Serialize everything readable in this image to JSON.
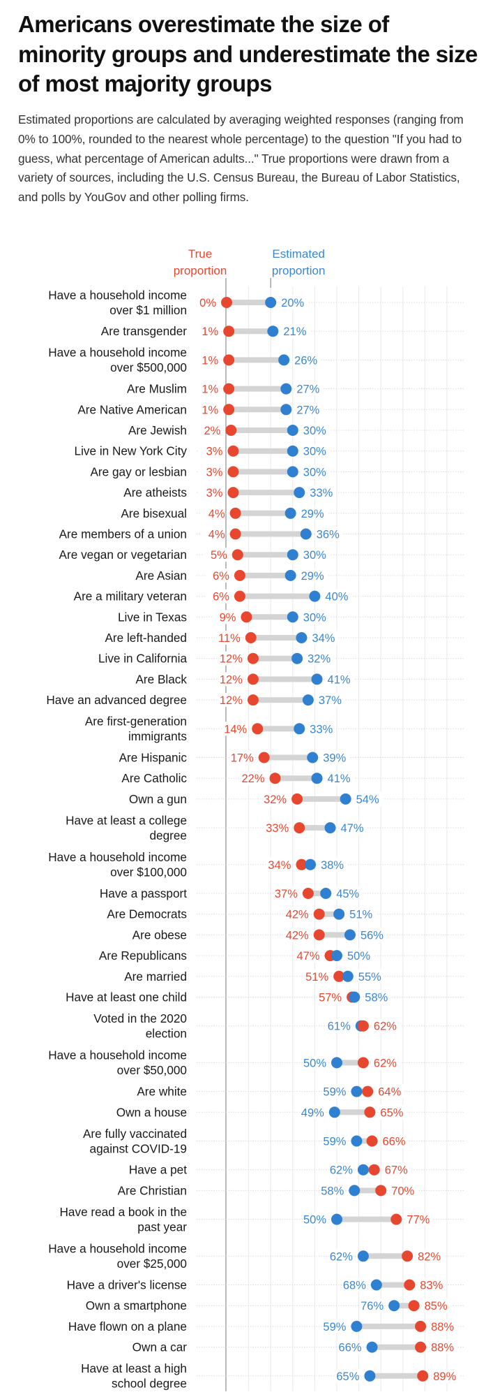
{
  "title": "Americans overestimate the size of minority groups and underestimate the size of most majority groups",
  "subtitle": "Estimated proportions are calculated by averaging weighted responses (ranging from 0% to 100%, rounded to the nearest whole percentage) to the question \"If you had to guess, what percentage of American adults...\" True proportions were drawn from a variety of sources, including the U.S. Census Bureau, the Bureau of Labor Statistics, and polls by YouGov and other polling firms.",
  "colors": {
    "true": "#e8472f",
    "estimated": "#2f80d1",
    "estimated_text": "#3a87cf",
    "bar": "#d4d4d4"
  },
  "chart_data": {
    "type": "dot",
    "title": "Americans overestimate the size of minority groups and underestimate the size of most majority groups",
    "xlabel": "",
    "ylabel": "",
    "xlim": [
      0,
      100
    ],
    "x_unit": "%",
    "grid": true,
    "gridline_step": 10,
    "legend": [
      {
        "name": "True proportion",
        "lines": [
          "True",
          "proportion"
        ],
        "color": "#e8472f",
        "placement": "top"
      },
      {
        "name": "Estimated proportion",
        "lines": [
          "Estimated",
          "proportion"
        ],
        "color": "#2f80d1",
        "placement": "top"
      }
    ],
    "series": [
      {
        "name": "True proportion",
        "key": "true"
      },
      {
        "name": "Estimated proportion",
        "key": "estimated"
      }
    ],
    "rows": [
      {
        "label": [
          "Have a household income",
          "over $1 million"
        ],
        "true": 0,
        "estimated": 20
      },
      {
        "label": [
          "Are transgender"
        ],
        "true": 1,
        "estimated": 21
      },
      {
        "label": [
          "Have a household income",
          "over $500,000"
        ],
        "true": 1,
        "estimated": 26
      },
      {
        "label": [
          "Are Muslim"
        ],
        "true": 1,
        "estimated": 27
      },
      {
        "label": [
          "Are Native American"
        ],
        "true": 1,
        "estimated": 27
      },
      {
        "label": [
          "Are Jewish"
        ],
        "true": 2,
        "estimated": 30
      },
      {
        "label": [
          "Live in New York City"
        ],
        "true": 3,
        "estimated": 30
      },
      {
        "label": [
          "Are gay or lesbian"
        ],
        "true": 3,
        "estimated": 30
      },
      {
        "label": [
          "Are atheists"
        ],
        "true": 3,
        "estimated": 33
      },
      {
        "label": [
          "Are bisexual"
        ],
        "true": 4,
        "estimated": 29
      },
      {
        "label": [
          "Are members of a union"
        ],
        "true": 4,
        "estimated": 36
      },
      {
        "label": [
          "Are vegan or vegetarian"
        ],
        "true": 5,
        "estimated": 30
      },
      {
        "label": [
          "Are Asian"
        ],
        "true": 6,
        "estimated": 29
      },
      {
        "label": [
          "Are a military veteran"
        ],
        "true": 6,
        "estimated": 40
      },
      {
        "label": [
          "Live in Texas"
        ],
        "true": 9,
        "estimated": 30
      },
      {
        "label": [
          "Are left-handed"
        ],
        "true": 11,
        "estimated": 34
      },
      {
        "label": [
          "Live in California"
        ],
        "true": 12,
        "estimated": 32
      },
      {
        "label": [
          "Are Black"
        ],
        "true": 12,
        "estimated": 41
      },
      {
        "label": [
          "Have an advanced degree"
        ],
        "true": 12,
        "estimated": 37
      },
      {
        "label": [
          "Are first-generation",
          "immigrants"
        ],
        "true": 14,
        "estimated": 33
      },
      {
        "label": [
          "Are Hispanic"
        ],
        "true": 17,
        "estimated": 39
      },
      {
        "label": [
          "Are Catholic"
        ],
        "true": 22,
        "estimated": 41
      },
      {
        "label": [
          "Own a gun"
        ],
        "true": 32,
        "estimated": 54
      },
      {
        "label": [
          "Have at least a college",
          "degree"
        ],
        "true": 33,
        "estimated": 47
      },
      {
        "label": [
          "Have a household income",
          "over $100,000"
        ],
        "true": 34,
        "estimated": 38
      },
      {
        "label": [
          "Have a passport"
        ],
        "true": 37,
        "estimated": 45
      },
      {
        "label": [
          "Are Democrats"
        ],
        "true": 42,
        "estimated": 51
      },
      {
        "label": [
          "Are obese"
        ],
        "true": 42,
        "estimated": 56
      },
      {
        "label": [
          "Are Republicans"
        ],
        "true": 47,
        "estimated": 50
      },
      {
        "label": [
          "Are married"
        ],
        "true": 51,
        "estimated": 55
      },
      {
        "label": [
          "Have at least one child"
        ],
        "true": 57,
        "estimated": 58
      },
      {
        "label": [
          "Voted in the 2020",
          "election"
        ],
        "true": 62,
        "estimated": 61
      },
      {
        "label": [
          "Have a household income",
          "over $50,000"
        ],
        "true": 62,
        "estimated": 50
      },
      {
        "label": [
          "Are white"
        ],
        "true": 64,
        "estimated": 59
      },
      {
        "label": [
          "Own a house"
        ],
        "true": 65,
        "estimated": 49
      },
      {
        "label": [
          "Are fully vaccinated",
          "against COVID-19"
        ],
        "true": 66,
        "estimated": 59
      },
      {
        "label": [
          "Have a pet"
        ],
        "true": 67,
        "estimated": 62
      },
      {
        "label": [
          "Are Christian"
        ],
        "true": 70,
        "estimated": 58
      },
      {
        "label": [
          "Have read a book in the",
          "past year"
        ],
        "true": 77,
        "estimated": 50
      },
      {
        "label": [
          "Have a household income",
          "over $25,000"
        ],
        "true": 82,
        "estimated": 62
      },
      {
        "label": [
          "Have a driver's license"
        ],
        "true": 83,
        "estimated": 68
      },
      {
        "label": [
          "Own a smartphone"
        ],
        "true": 85,
        "estimated": 76
      },
      {
        "label": [
          "Have flown on a plane"
        ],
        "true": 88,
        "estimated": 59
      },
      {
        "label": [
          "Own a car"
        ],
        "true": 88,
        "estimated": 66
      },
      {
        "label": [
          "Have at least a high",
          "school degree"
        ],
        "true": 89,
        "estimated": 65
      }
    ]
  }
}
